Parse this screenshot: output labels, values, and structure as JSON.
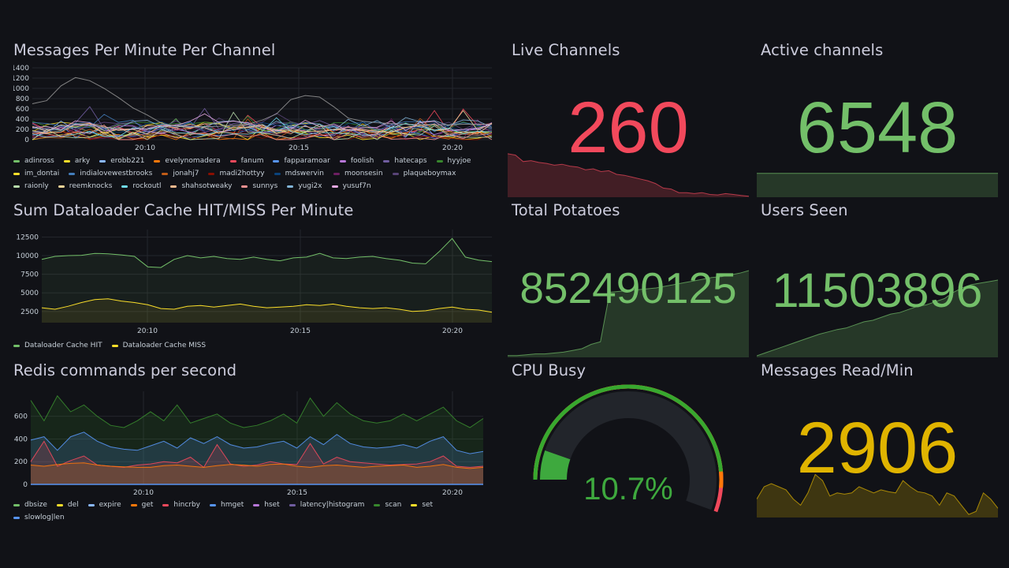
{
  "panels": {
    "messages_per_minute": {
      "title": "Messages Per Minute Per Channel",
      "chart_data": {
        "type": "line",
        "y_ticks": [
          0,
          200,
          400,
          600,
          800,
          1000,
          1200,
          1400
        ],
        "ylim": [
          0,
          1400
        ],
        "x_ticks": [
          "20:10",
          "20:15",
          "20:20"
        ],
        "series": [
          {
            "name": "adinross",
            "color": "#73bf69"
          },
          {
            "name": "arky",
            "color": "#fade2a"
          },
          {
            "name": "erobb221",
            "color": "#8ab8ff"
          },
          {
            "name": "evelynomadera",
            "color": "#ff780a"
          },
          {
            "name": "fanum",
            "color": "#f2495c"
          },
          {
            "name": "fapparamoar",
            "color": "#5794f2"
          },
          {
            "name": "foolish",
            "color": "#b877d9"
          },
          {
            "name": "hatecaps",
            "color": "#705da0"
          },
          {
            "name": "hyyjoe",
            "color": "#37872d"
          },
          {
            "name": "im_dontai",
            "color": "#fade2a"
          },
          {
            "name": "indialovewestbrooks",
            "color": "#447ebc"
          },
          {
            "name": "jonahj7",
            "color": "#c15c17"
          },
          {
            "name": "madi2hottyy",
            "color": "#890f02"
          },
          {
            "name": "mdswervin",
            "color": "#0a437c"
          },
          {
            "name": "moonsesin",
            "color": "#6d1f62"
          },
          {
            "name": "plaqueboymax",
            "color": "#584477"
          },
          {
            "name": "raionly",
            "color": "#b7dbab"
          },
          {
            "name": "reemknocks",
            "color": "#f4d598"
          },
          {
            "name": "rockoutl",
            "color": "#70dbed"
          },
          {
            "name": "shahsotweaky",
            "color": "#f9ba8f"
          },
          {
            "name": "sunnys",
            "color": "#f29191"
          },
          {
            "name": "yugi2x",
            "color": "#82b5d8"
          },
          {
            "name": "yusuf7n",
            "color": "#e5a8e2"
          }
        ],
        "highlight_series": {
          "color": "#a0a0a0",
          "values": [
            700,
            760,
            1050,
            1210,
            1150,
            1000,
            820,
            620,
            480,
            320,
            260,
            240,
            250,
            260,
            280,
            300,
            380,
            500,
            780,
            860,
            830,
            640,
            420,
            360,
            330,
            310,
            300,
            300,
            290,
            290,
            300,
            300,
            300
          ]
        }
      }
    },
    "cache_hit_miss": {
      "title": "Sum Dataloader Cache HIT/MISS Per Minute",
      "chart_data": {
        "type": "area",
        "y_ticks": [
          2500,
          5000,
          7500,
          10000,
          12500
        ],
        "ylim": [
          1000,
          13500
        ],
        "x_ticks": [
          "20:10",
          "20:15",
          "20:20"
        ],
        "series": [
          {
            "name": "Dataloader Cache HIT",
            "color": "#73bf69",
            "values": [
              9500,
              9900,
              10000,
              10050,
              10300,
              10250,
              10100,
              9900,
              8500,
              8400,
              9500,
              10000,
              9700,
              9900,
              9600,
              9500,
              9800,
              9500,
              9300,
              9700,
              9800,
              10300,
              9700,
              9600,
              9800,
              9900,
              9600,
              9400,
              9000,
              8900,
              10500,
              12300,
              9800,
              9400,
              9200
            ]
          },
          {
            "name": "Dataloader Cache MISS",
            "color": "#fade2a",
            "values": [
              3000,
              2800,
              3200,
              3700,
              4100,
              4200,
              3900,
              3700,
              3400,
              2900,
              2800,
              3200,
              3300,
              3100,
              3300,
              3500,
              3200,
              3000,
              3100,
              3200,
              3400,
              3300,
              3500,
              3200,
              3000,
              2900,
              3000,
              2800,
              2500,
              2600,
              2900,
              3100,
              2800,
              2700,
              2400
            ]
          }
        ]
      }
    },
    "redis_commands": {
      "title": "Redis commands per second",
      "chart_data": {
        "type": "area",
        "stacked": true,
        "y_ticks": [
          0,
          200,
          400,
          600
        ],
        "ylim": [
          0,
          820
        ],
        "x_ticks": [
          "20:10",
          "20:15",
          "20:20"
        ],
        "series": [
          {
            "name": "dbsize",
            "color": "#73bf69"
          },
          {
            "name": "del",
            "color": "#fade2a"
          },
          {
            "name": "expire",
            "color": "#8ab8ff"
          },
          {
            "name": "get",
            "color": "#ff780a",
            "values": [
              170,
              160,
              175,
              185,
              190,
              170,
              160,
              155,
              150,
              150,
              165,
              170,
              160,
              150,
              165,
              175,
              170,
              160,
              175,
              180,
              160,
              150,
              165,
              170,
              160,
              150,
              160,
              165,
              170,
              150,
              160,
              175,
              150,
              140,
              150
            ]
          },
          {
            "name": "hincrby",
            "color": "#f2495c",
            "values": [
              200,
              380,
              160,
              210,
              250,
              170,
              160,
              150,
              170,
              180,
              200,
              190,
              240,
              150,
              350,
              180,
              160,
              170,
              200,
              180,
              175,
              360,
              180,
              240,
              200,
              190,
              180,
              170,
              175,
              180,
              200,
              250,
              160,
              150,
              160
            ]
          },
          {
            "name": "hmget",
            "color": "#5794f2",
            "values": [
              390,
              420,
              300,
              420,
              460,
              380,
              330,
              310,
              300,
              340,
              380,
              320,
              410,
              360,
              420,
              350,
              320,
              330,
              360,
              380,
              320,
              420,
              350,
              440,
              360,
              330,
              320,
              330,
              350,
              320,
              380,
              420,
              300,
              270,
              290
            ]
          },
          {
            "name": "hset",
            "color": "#b877d9"
          },
          {
            "name": "latency|histogram",
            "color": "#705da0"
          },
          {
            "name": "scan",
            "color": "#37872d",
            "values": [
              740,
              560,
              780,
              640,
              700,
              600,
              520,
              500,
              560,
              640,
              560,
              700,
              540,
              580,
              620,
              540,
              500,
              520,
              560,
              620,
              540,
              760,
              600,
              720,
              620,
              560,
              540,
              560,
              620,
              560,
              620,
              680,
              560,
              500,
              580
            ]
          },
          {
            "name": "set",
            "color": "#fade2a"
          },
          {
            "name": "slowlog|len",
            "color": "#5794f2"
          }
        ]
      }
    },
    "live_channels": {
      "title": "Live Channels",
      "value": "260",
      "color": "#f2495c",
      "spark": [
        0.95,
        0.92,
        0.78,
        0.8,
        0.76,
        0.74,
        0.7,
        0.72,
        0.68,
        0.66,
        0.6,
        0.62,
        0.56,
        0.58,
        0.5,
        0.48,
        0.44,
        0.4,
        0.36,
        0.3,
        0.2,
        0.18,
        0.1,
        0.1,
        0.08,
        0.1,
        0.06,
        0.05,
        0.08,
        0.06,
        0.04,
        0.02
      ]
    },
    "active_channels": {
      "title": "Active channels",
      "value": "6548",
      "color": "#73bf69",
      "spark": [
        0.52,
        0.52,
        0.52,
        0.52,
        0.52,
        0.52,
        0.52,
        0.52,
        0.52,
        0.52
      ]
    },
    "total_potatoes": {
      "title": "Total Potatoes",
      "value": "852490125",
      "color": "#73bf69",
      "spark": [
        0.02,
        0.02,
        0.03,
        0.04,
        0.04,
        0.05,
        0.06,
        0.08,
        0.1,
        0.15,
        0.18,
        0.75,
        0.76,
        0.77,
        0.78,
        0.79,
        0.8,
        0.82,
        0.84,
        0.86,
        0.88,
        0.9,
        0.92,
        0.93,
        0.95,
        0.97,
        1.0
      ]
    },
    "users_seen": {
      "title": "Users Seen",
      "value": "11503896",
      "color": "#73bf69",
      "spark": [
        0.02,
        0.06,
        0.1,
        0.14,
        0.18,
        0.22,
        0.26,
        0.3,
        0.33,
        0.36,
        0.38,
        0.42,
        0.46,
        0.48,
        0.52,
        0.56,
        0.58,
        0.62,
        0.66,
        0.68,
        0.72,
        0.76,
        0.84,
        0.9,
        0.94,
        0.96,
        0.98,
        1.0
      ]
    },
    "cpu_busy": {
      "title": "CPU Busy",
      "value": "10.7%",
      "percent": 10.7,
      "color": "#3ea93e"
    },
    "messages_read": {
      "title": "Messages Read/Min",
      "value": "2906",
      "color": "#e0b400",
      "spark": [
        0.3,
        0.5,
        0.55,
        0.5,
        0.45,
        0.3,
        0.2,
        0.4,
        0.7,
        0.6,
        0.35,
        0.4,
        0.38,
        0.4,
        0.5,
        0.45,
        0.4,
        0.45,
        0.42,
        0.4,
        0.6,
        0.5,
        0.42,
        0.4,
        0.35,
        0.2,
        0.4,
        0.35,
        0.2,
        0.05,
        0.1,
        0.4,
        0.3,
        0.15
      ]
    }
  }
}
